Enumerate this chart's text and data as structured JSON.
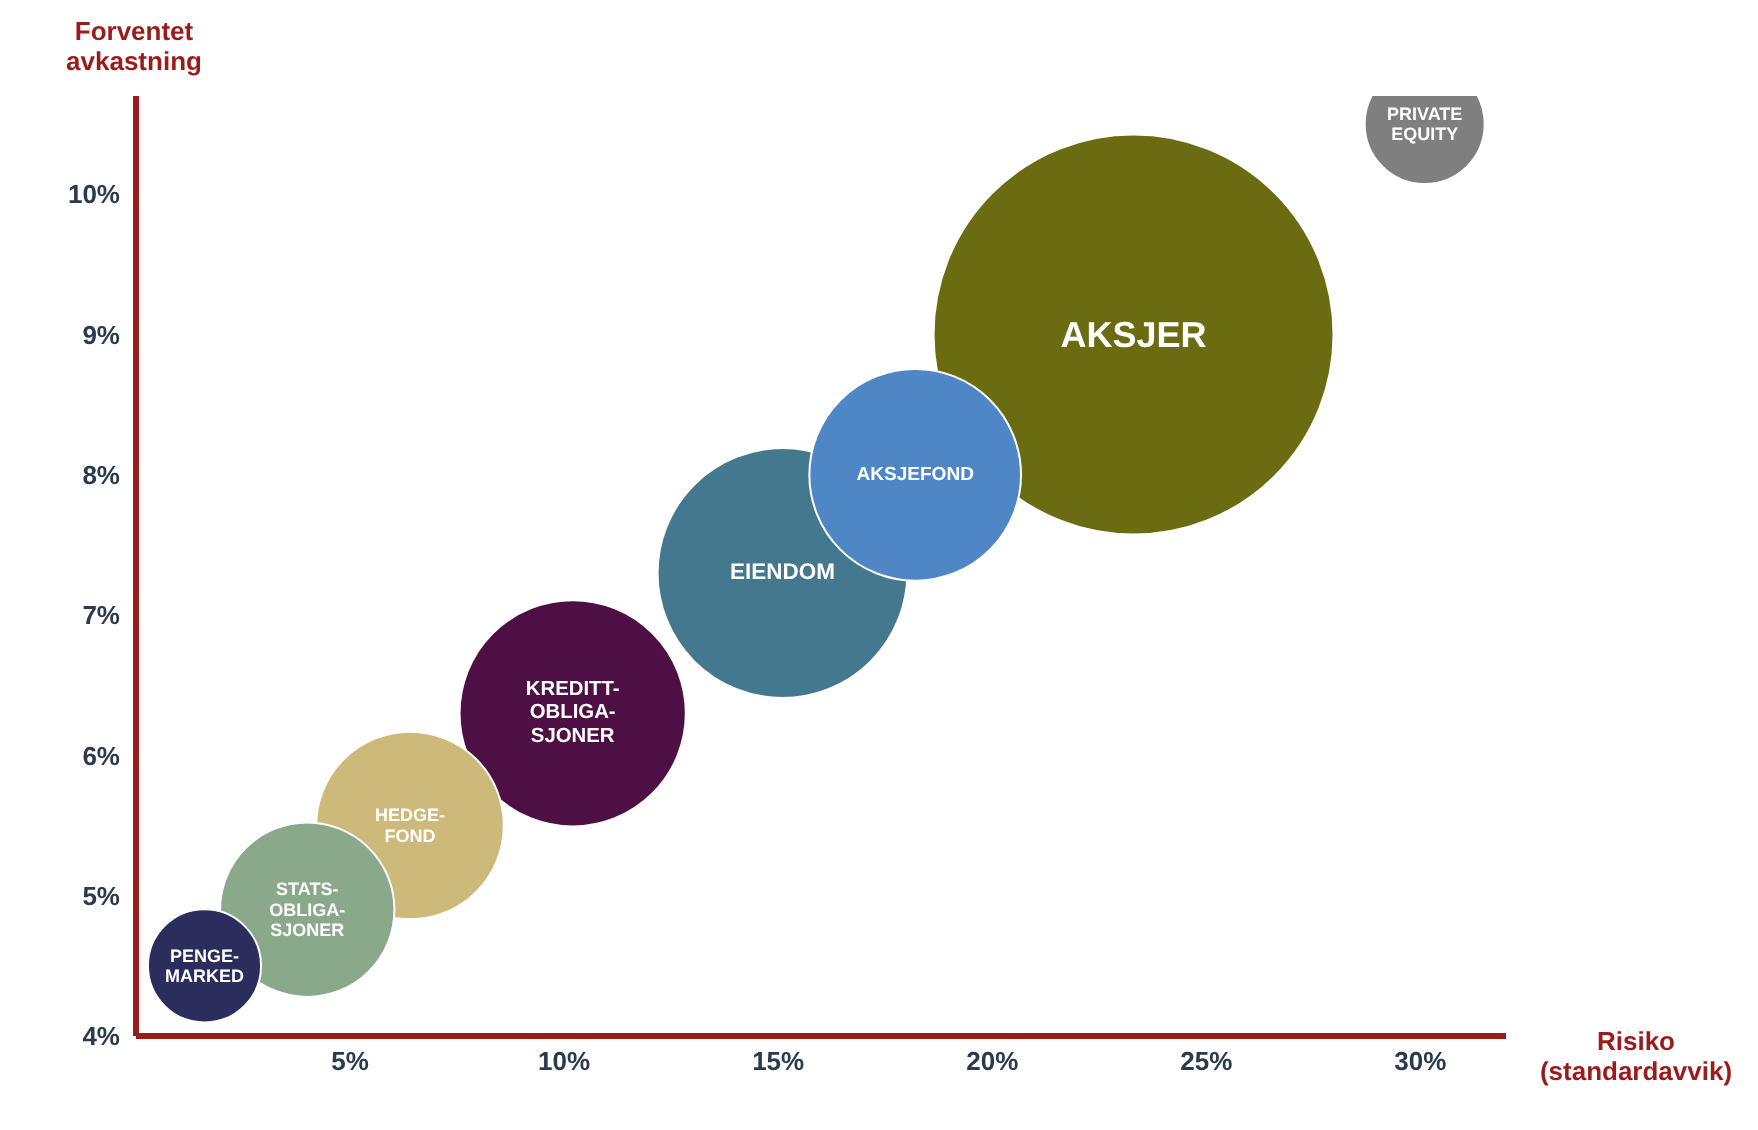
{
  "chart_data": {
    "type": "bubble",
    "xlabel": "Risiko (standardavvik)",
    "ylabel": "Forventet avkastning",
    "xlim": [
      0,
      32
    ],
    "ylim": [
      4,
      10.7
    ],
    "xticks": [
      {
        "value": 5,
        "label": "5%"
      },
      {
        "value": 10,
        "label": "10%"
      },
      {
        "value": 15,
        "label": "15%"
      },
      {
        "value": 20,
        "label": "20%"
      },
      {
        "value": 25,
        "label": "25%"
      },
      {
        "value": 30,
        "label": "30%"
      }
    ],
    "yticks": [
      {
        "value": 4,
        "label": "4%"
      },
      {
        "value": 5,
        "label": "5%"
      },
      {
        "value": 6,
        "label": "6%"
      },
      {
        "value": 7,
        "label": "7%"
      },
      {
        "value": 8,
        "label": "8%"
      },
      {
        "value": 9,
        "label": "9%"
      },
      {
        "value": 10,
        "label": "10%"
      }
    ],
    "series": [
      {
        "name": "PRIVATE EQUITY",
        "color": "#7f7f7f",
        "x": [
          30.1
        ],
        "values": [
          10.5
        ],
        "sizes": [
          0.09
        ]
      },
      {
        "name": "AKSJER",
        "color": "#6b6b12",
        "x": [
          23.3
        ],
        "values": [
          9
        ],
        "sizes": [
          1
        ]
      },
      {
        "name": "EIENDOM",
        "color": "#44788f",
        "x": [
          15.1
        ],
        "values": [
          7.3
        ],
        "sizes": [
          0.39
        ]
      },
      {
        "name": "AKSJEFOND",
        "color": "#4f86c6",
        "x": [
          18.2
        ],
        "values": [
          8
        ],
        "sizes": [
          0.28
        ]
      },
      {
        "name": "KREDITT-OBLIGA-SJONER",
        "color": "#4e0f45",
        "x": [
          10.2
        ],
        "values": [
          6.3
        ],
        "sizes": [
          0.32
        ]
      },
      {
        "name": "HEDGE-FOND",
        "color": "#cdb97a",
        "x": [
          6.4
        ],
        "values": [
          5.5
        ],
        "sizes": [
          0.22
        ]
      },
      {
        "name": "STATS-OBLIGA-SJONER",
        "color": "#8aa88a",
        "x": [
          4
        ],
        "values": [
          4.9
        ],
        "sizes": [
          0.19
        ]
      },
      {
        "name": "PENGE-MARKED",
        "color": "#2b2d5c",
        "x": [
          1.6
        ],
        "values": [
          4.5
        ],
        "sizes": [
          0.08
        ]
      }
    ]
  }
}
